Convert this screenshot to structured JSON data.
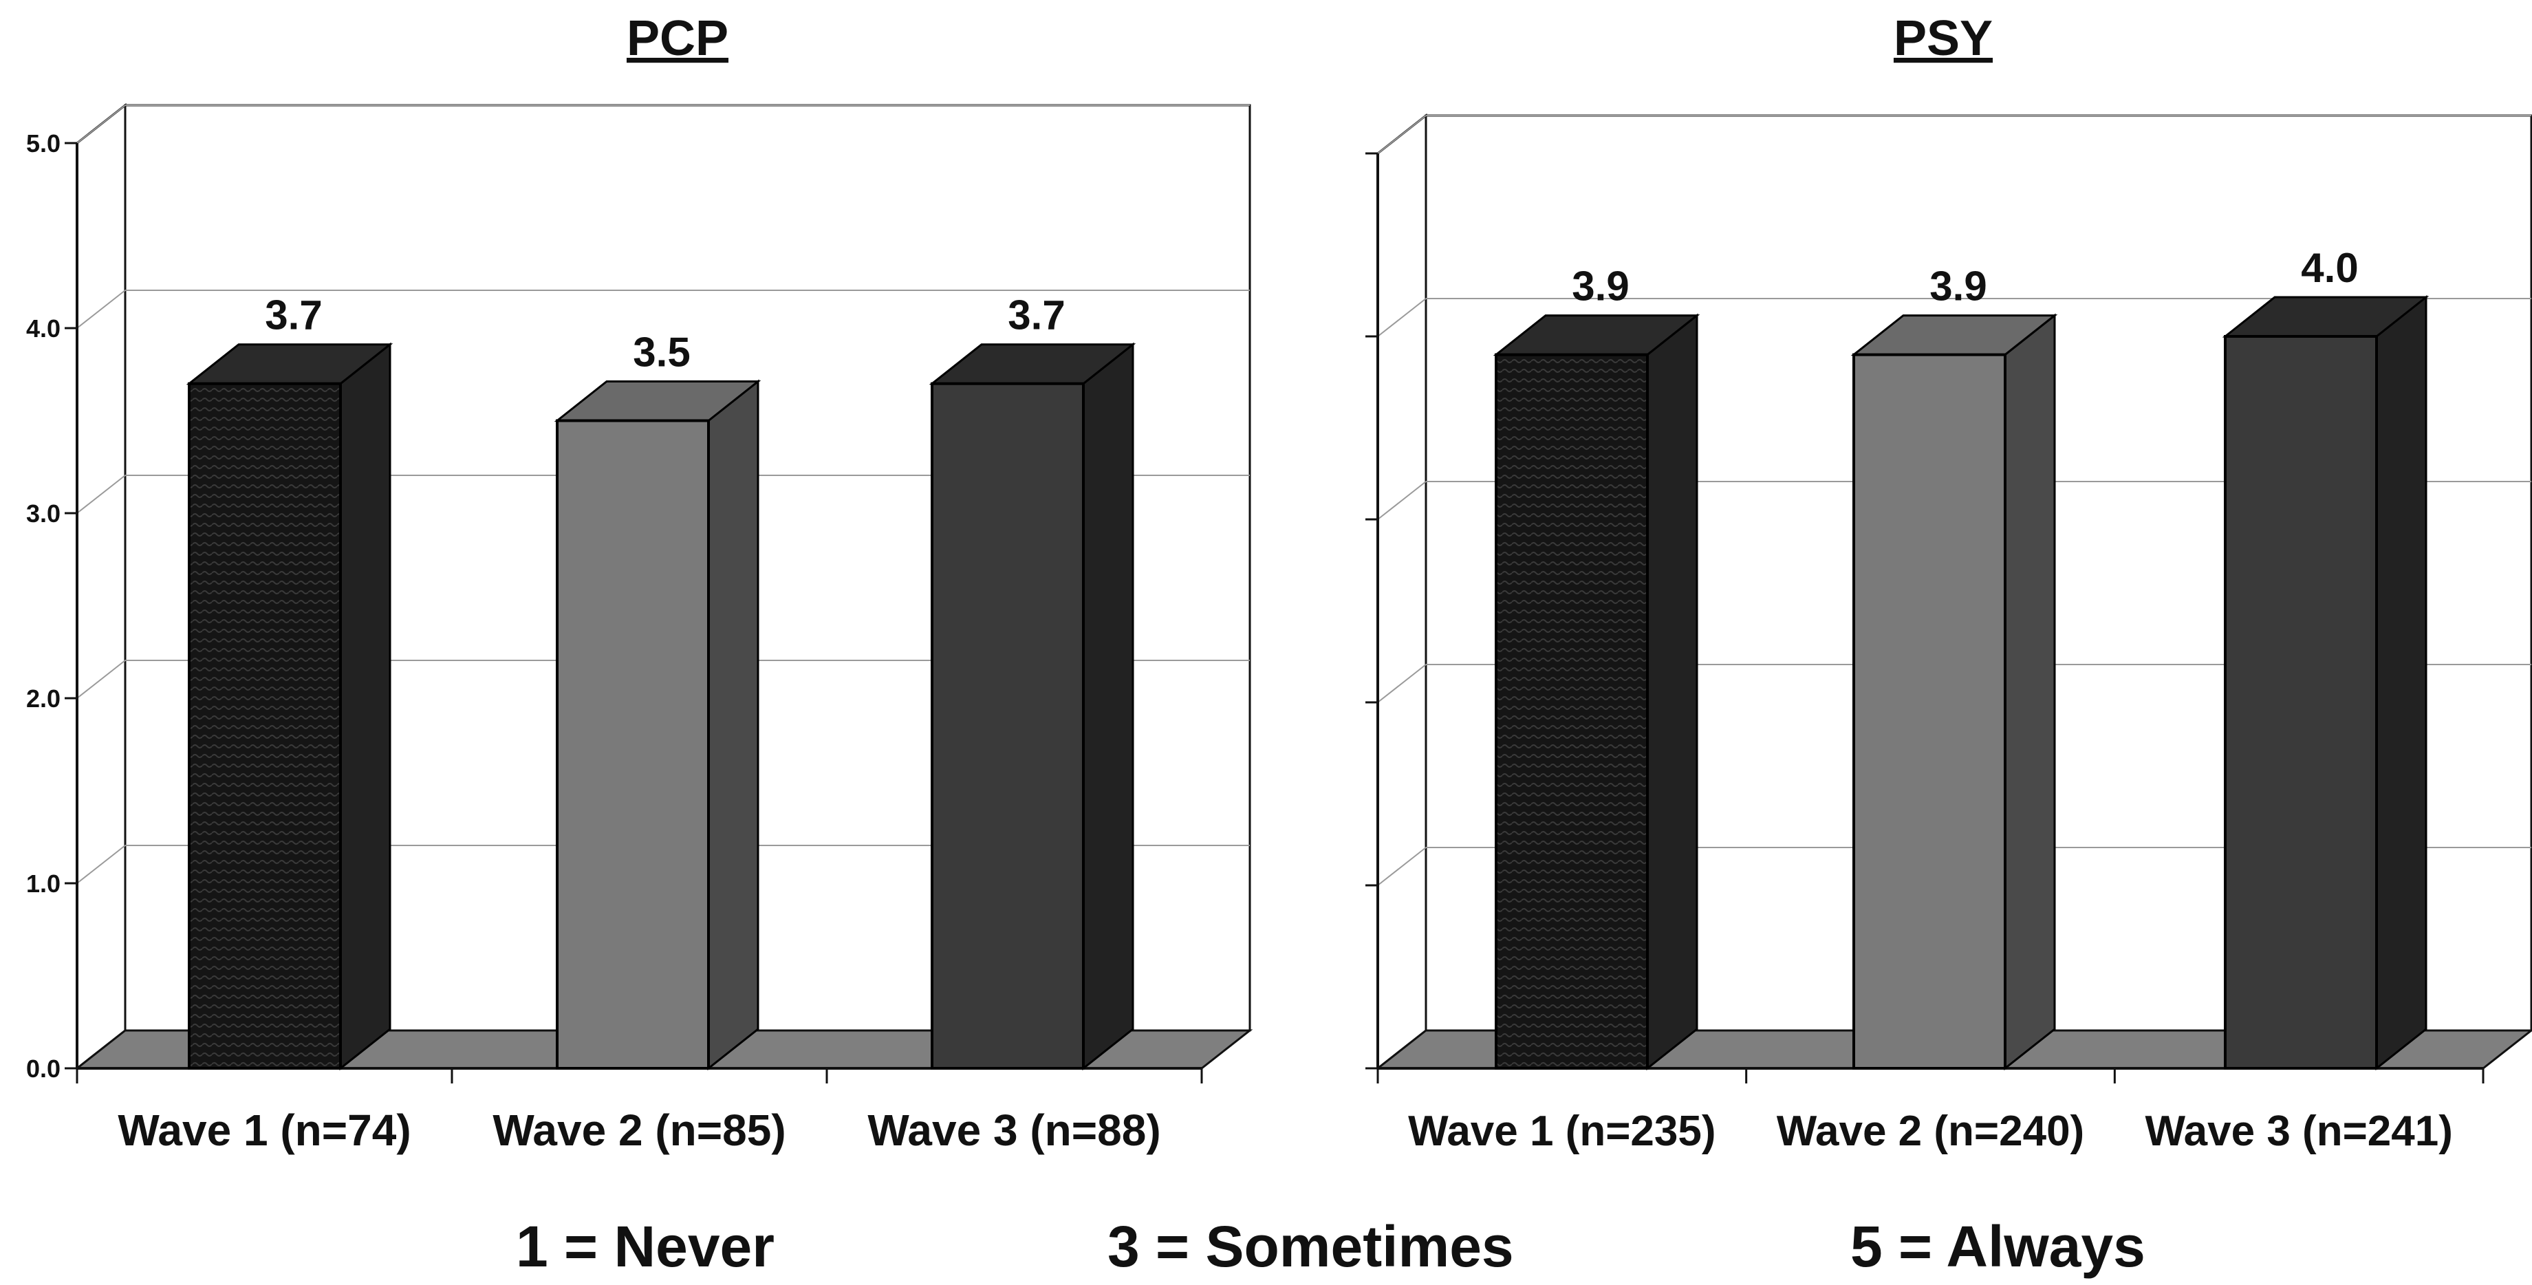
{
  "chart_data": [
    {
      "type": "bar",
      "title": "PCP",
      "categories": [
        "Wave 1 (n=74)",
        "Wave 2 (n=85)",
        "Wave 3 (n=88)"
      ],
      "values": [
        3.7,
        3.5,
        3.7
      ],
      "value_labels": [
        "3.7",
        "3.5",
        "3.7"
      ],
      "yticks": [
        "0.0",
        "1.0",
        "2.0",
        "3.0",
        "4.0",
        "5.0"
      ],
      "ylim": [
        0,
        5
      ],
      "grid": true,
      "bar_colors": [
        "#1a1a1a",
        "#7a7a7a",
        "#3a3a3a"
      ]
    },
    {
      "type": "bar",
      "title": "PSY",
      "categories": [
        "Wave 1 (n=235)",
        "Wave 2 (n=240)",
        "Wave 3 (n=241)"
      ],
      "values": [
        3.9,
        3.9,
        4.0
      ],
      "value_labels": [
        "3.9",
        "3.9",
        "4.0"
      ],
      "ylim": [
        0,
        5
      ],
      "grid": true,
      "bar_colors": [
        "#1a1a1a",
        "#7a7a7a",
        "#3a3a3a"
      ]
    }
  ],
  "legend": {
    "never": "1 = Never",
    "sometimes": "3 = Sometimes",
    "always": "5 = Always"
  }
}
